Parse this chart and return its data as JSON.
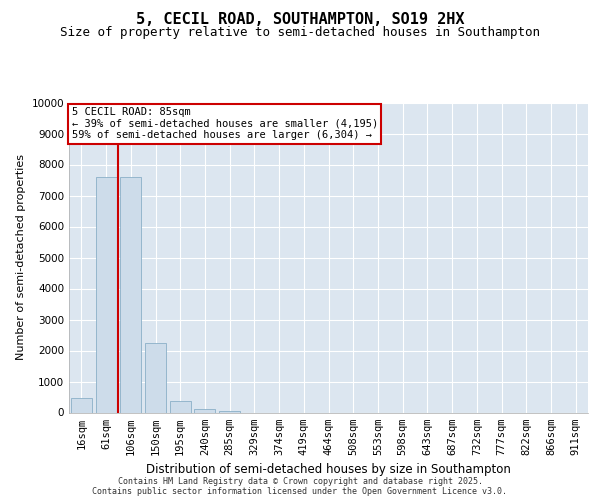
{
  "title": "5, CECIL ROAD, SOUTHAMPTON, SO19 2HX",
  "subtitle": "Size of property relative to semi-detached houses in Southampton",
  "xlabel": "Distribution of semi-detached houses by size in Southampton",
  "ylabel": "Number of semi-detached properties",
  "categories": [
    "16sqm",
    "61sqm",
    "106sqm",
    "150sqm",
    "195sqm",
    "240sqm",
    "285sqm",
    "329sqm",
    "374sqm",
    "419sqm",
    "464sqm",
    "508sqm",
    "553sqm",
    "598sqm",
    "643sqm",
    "687sqm",
    "732sqm",
    "777sqm",
    "822sqm",
    "866sqm",
    "911sqm"
  ],
  "values": [
    480,
    7600,
    7600,
    2250,
    380,
    110,
    60,
    0,
    0,
    0,
    0,
    0,
    0,
    0,
    0,
    0,
    0,
    0,
    0,
    0,
    0
  ],
  "bar_color": "#cddcea",
  "bar_edge_color": "#8aafc8",
  "fig_bg_color": "#ffffff",
  "plot_bg_color": "#dce6f0",
  "grid_color": "#ffffff",
  "vline_x": 1.5,
  "vline_color": "#cc0000",
  "annotation_title": "5 CECIL ROAD: 85sqm",
  "annotation_line1": "← 39% of semi-detached houses are smaller (4,195)",
  "annotation_line2": "59% of semi-detached houses are larger (6,304) →",
  "annotation_box_edgecolor": "#cc0000",
  "annotation_bg": "#ffffff",
  "ylim": [
    0,
    10000
  ],
  "yticks": [
    0,
    1000,
    2000,
    3000,
    4000,
    5000,
    6000,
    7000,
    8000,
    9000,
    10000
  ],
  "footer_line1": "Contains HM Land Registry data © Crown copyright and database right 2025.",
  "footer_line2": "Contains public sector information licensed under the Open Government Licence v3.0.",
  "title_fontsize": 11,
  "subtitle_fontsize": 9,
  "ylabel_fontsize": 8,
  "xlabel_fontsize": 8.5,
  "tick_fontsize": 7.5,
  "annot_fontsize": 7.5,
  "footer_fontsize": 6
}
